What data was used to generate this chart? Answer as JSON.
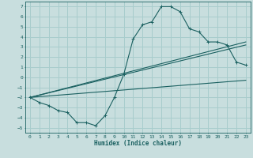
{
  "xlabel": "Humidex (Indice chaleur)",
  "ylabel": "",
  "bg_color": "#c8dede",
  "grid_color": "#a8cccc",
  "line_color": "#1a6060",
  "xlim": [
    -0.5,
    23.5
  ],
  "ylim": [
    -5.5,
    7.5
  ],
  "xticks": [
    0,
    1,
    2,
    3,
    4,
    5,
    6,
    7,
    8,
    9,
    10,
    11,
    12,
    13,
    14,
    15,
    16,
    17,
    18,
    19,
    20,
    21,
    22,
    23
  ],
  "yticks": [
    -5,
    -4,
    -3,
    -2,
    -1,
    0,
    1,
    2,
    3,
    4,
    5,
    6,
    7
  ],
  "line1_x": [
    0,
    1,
    2,
    3,
    4,
    5,
    6,
    7,
    8,
    9,
    10,
    11,
    12,
    13,
    14,
    15,
    16,
    17,
    18,
    19,
    20,
    21,
    22,
    23
  ],
  "line1_y": [
    -2.0,
    -2.5,
    -2.8,
    -3.3,
    -3.5,
    -4.5,
    -4.5,
    -4.8,
    -3.8,
    -2.0,
    0.3,
    3.8,
    5.2,
    5.5,
    7.0,
    7.0,
    6.5,
    4.8,
    4.5,
    3.5,
    3.5,
    3.2,
    1.5,
    1.2
  ],
  "line2_x": [
    0,
    23
  ],
  "line2_y": [
    -2.0,
    -0.3
  ],
  "line3_x": [
    0,
    23
  ],
  "line3_y": [
    -2.0,
    3.2
  ],
  "line4_x": [
    0,
    23
  ],
  "line4_y": [
    -2.0,
    3.5
  ]
}
